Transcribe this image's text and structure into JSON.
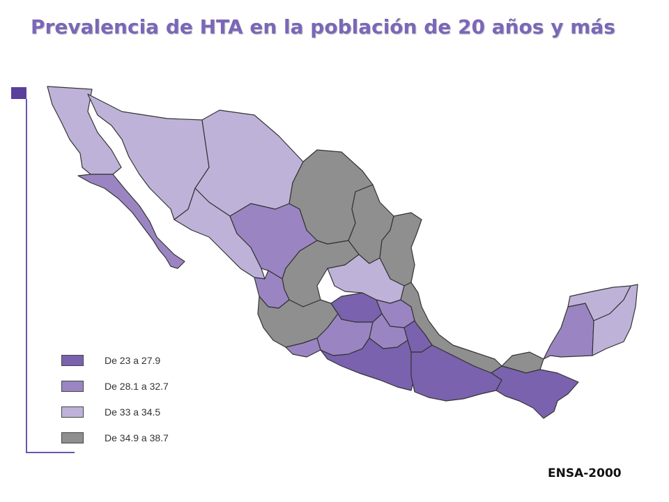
{
  "title": "Prevalencia de HTA en la población de 20 años y más",
  "source": "ENSA-2000",
  "legend": [
    {
      "label": "De 23 a 27.9",
      "color": "#7a62ae"
    },
    {
      "label": "De 28.1 a 32.7",
      "color": "#9a85c2"
    },
    {
      "label": "De 33 a 34.5",
      "color": "#bfb2d9"
    },
    {
      "label": "De 34.9 a 38.7",
      "color": "#8f8f8f"
    }
  ],
  "colors": {
    "accent": "#5b3f9c",
    "title": "#7a67b8",
    "border": "#333333"
  }
}
